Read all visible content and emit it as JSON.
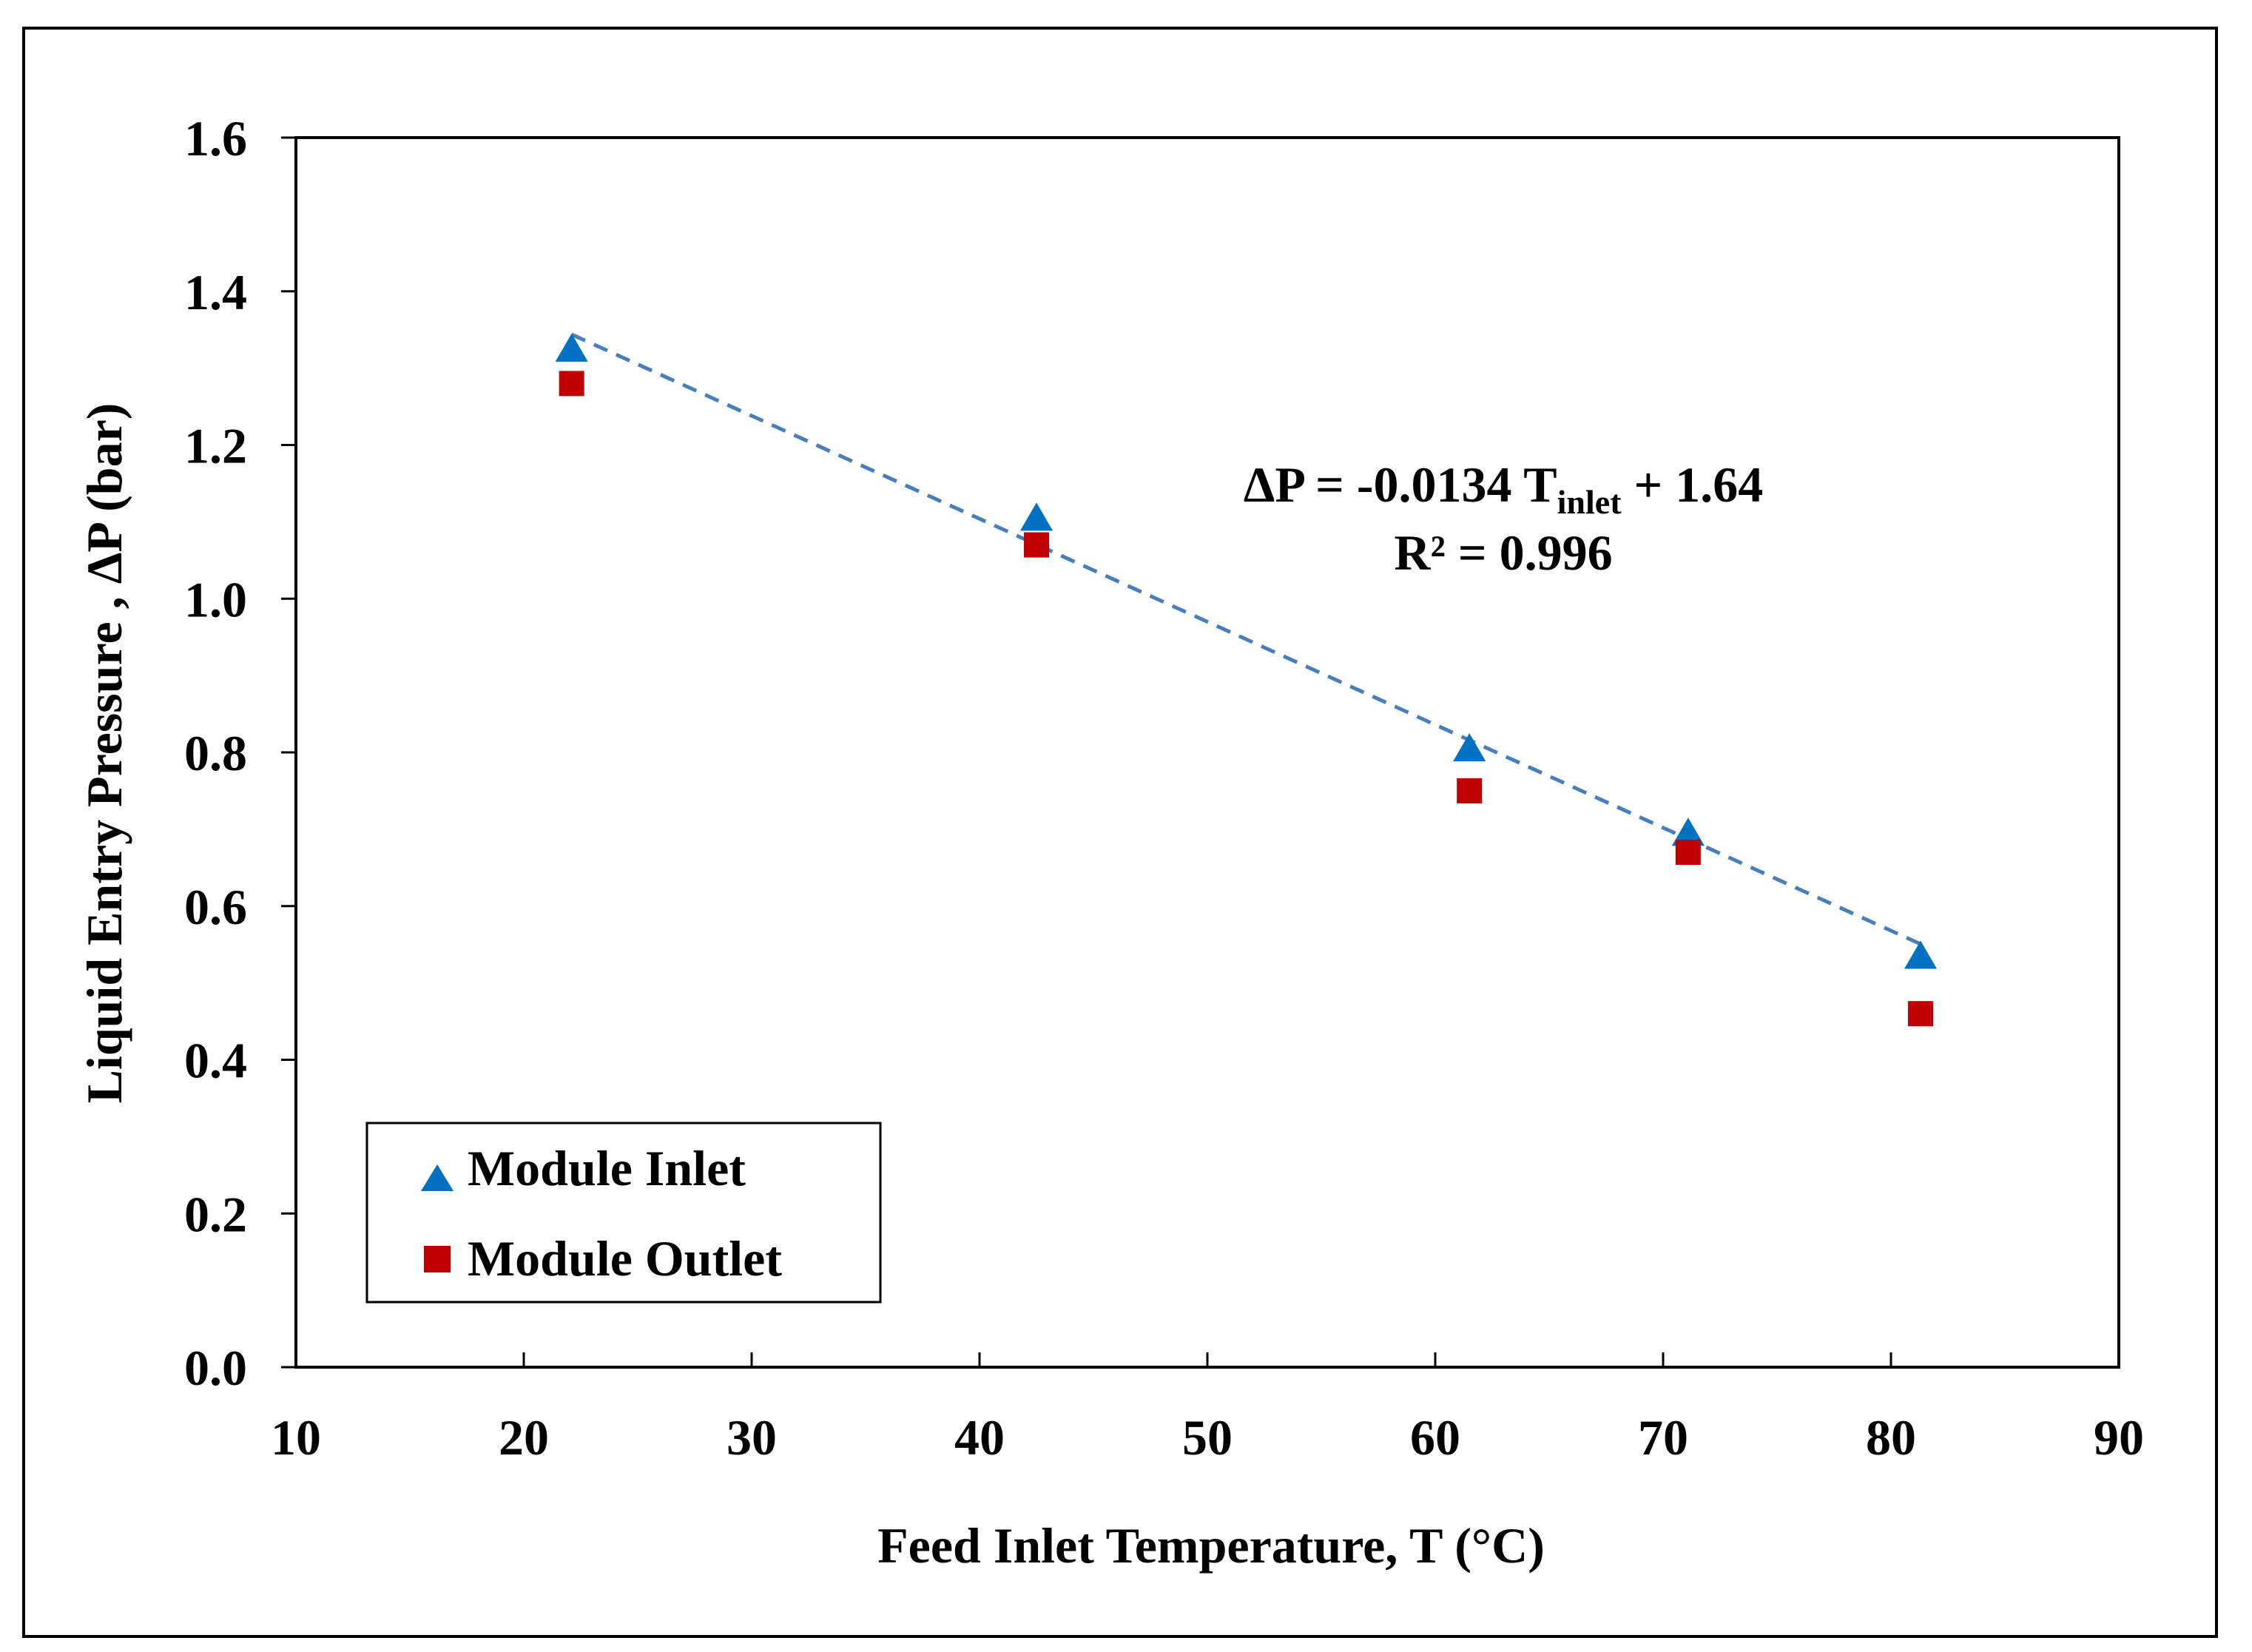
{
  "chart_data": {
    "type": "scatter",
    "title": "",
    "xlabel": "Feed Inlet Temperature, T (°C)",
    "ylabel": "Liquid Entry Pressure , ΔP (bar)",
    "xlim": [
      10,
      90
    ],
    "ylim": [
      0.0,
      1.6
    ],
    "x_ticks": [
      10,
      20,
      30,
      40,
      50,
      60,
      70,
      80,
      90
    ],
    "y_ticks": [
      0.0,
      0.2,
      0.4,
      0.6,
      0.8,
      1.0,
      1.2,
      1.4,
      1.6
    ],
    "x_tick_labels": [
      "10",
      "20",
      "30",
      "40",
      "50",
      "60",
      "70",
      "80",
      "90"
    ],
    "y_tick_labels": [
      "0.0",
      "0.2",
      "0.4",
      "0.6",
      "0.8",
      "1.0",
      "1.2",
      "1.4",
      "1.6"
    ],
    "grid": false,
    "legend_position": "bottom-left",
    "series": [
      {
        "name": "Module Inlet",
        "marker": "triangle",
        "color": "#0070C0",
        "x": [
          22.1,
          42.5,
          61.5,
          71.1,
          81.3
        ],
        "y": [
          1.32,
          1.1,
          0.8,
          0.69,
          0.53
        ]
      },
      {
        "name": "Module Outlet",
        "marker": "square",
        "color": "#C00000",
        "x": [
          22.1,
          42.5,
          61.5,
          71.1,
          81.3
        ],
        "y": [
          1.28,
          1.07,
          0.75,
          0.67,
          0.46
        ]
      }
    ],
    "trendline": {
      "slope": -0.0134,
      "intercept": 1.64,
      "x_range": [
        22.1,
        81.3
      ],
      "color": "#4A7EBB",
      "style": "dashed"
    },
    "annotations": {
      "equation_prefix": "ΔP = -0.0134 T",
      "equation_subscript": "inlet",
      "equation_suffix": " + 1.64",
      "r_squared": "R² = 0.996"
    }
  }
}
